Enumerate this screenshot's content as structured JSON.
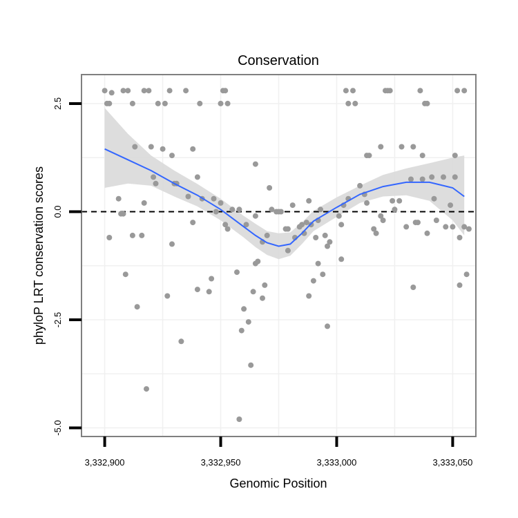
{
  "chart_data": {
    "type": "scatter",
    "title": "Conservation",
    "xlabel": "Genomic Position",
    "ylabel": "phyloP LRT conservation scores",
    "xlim": [
      3332890,
      3333060
    ],
    "ylim": [
      -5.2,
      3.17
    ],
    "x_ticks": [
      3332900,
      3332950,
      3333000,
      3333050
    ],
    "x_tick_labels": [
      "3,332,900",
      "3,332,950",
      "3,333,000",
      "3,333,050"
    ],
    "y_ticks": [
      2.5,
      0.0,
      -2.5,
      -5.0
    ],
    "y_tick_labels": [
      "2.5",
      "0.0",
      "-2.5",
      "-5.0"
    ],
    "reference_line": {
      "y": 0,
      "style": "dashed"
    },
    "grid": true,
    "colors": {
      "points": "#999999",
      "smooth": "#3366ff",
      "ribbon": "#d9d9d9",
      "border": "#7f7f7f",
      "grid": "#f0f0f0"
    },
    "points": [
      [
        3332900,
        2.8
      ],
      [
        3332901,
        2.5
      ],
      [
        3332902,
        2.5
      ],
      [
        3332903,
        2.75
      ],
      [
        3332908,
        2.8
      ],
      [
        3332910,
        2.8
      ],
      [
        3332912,
        2.5
      ],
      [
        3332917,
        2.8
      ],
      [
        3332919,
        2.8
      ],
      [
        3332923,
        2.5
      ],
      [
        3332926,
        2.5
      ],
      [
        3332928,
        2.8
      ],
      [
        3332935,
        2.8
      ],
      [
        3332941,
        2.5
      ],
      [
        3332950,
        2.5
      ],
      [
        3332951,
        2.8
      ],
      [
        3332952,
        2.8
      ],
      [
        3332953,
        2.5
      ],
      [
        3333004,
        2.8
      ],
      [
        3333005,
        2.5
      ],
      [
        3333007,
        2.8
      ],
      [
        3333008,
        2.5
      ],
      [
        3333021,
        2.8
      ],
      [
        3333022,
        2.8
      ],
      [
        3333023,
        2.8
      ],
      [
        3333036,
        2.8
      ],
      [
        3333038,
        2.5
      ],
      [
        3333039,
        2.5
      ],
      [
        3333052,
        2.8
      ],
      [
        3333055,
        2.8
      ],
      [
        3332913,
        1.5
      ],
      [
        3332920,
        1.5
      ],
      [
        3332925,
        1.45
      ],
      [
        3332929,
        1.3
      ],
      [
        3332938,
        1.45
      ],
      [
        3333019,
        1.5
      ],
      [
        3333013,
        1.3
      ],
      [
        3333014,
        1.3
      ],
      [
        3333028,
        1.5
      ],
      [
        3333033,
        1.5
      ],
      [
        3333037,
        1.3
      ],
      [
        3333051,
        1.3
      ],
      [
        3332965,
        1.1
      ],
      [
        3332921,
        0.8
      ],
      [
        3332922,
        0.65
      ],
      [
        3332930,
        0.65
      ],
      [
        3332931,
        0.65
      ],
      [
        3332940,
        0.8
      ],
      [
        3332906,
        0.3
      ],
      [
        3332917,
        0.2
      ],
      [
        3332936,
        0.35
      ],
      [
        3332938,
        -0.25
      ],
      [
        3332942,
        0.3
      ],
      [
        3332947,
        0.3
      ],
      [
        3332948,
        0.0
      ],
      [
        3332950,
        0.2
      ],
      [
        3332952,
        -0.3
      ],
      [
        3332953,
        -0.4
      ],
      [
        3332955,
        0.05
      ],
      [
        3332958,
        0.05
      ],
      [
        3332961,
        -0.3
      ],
      [
        3332965,
        -0.1
      ],
      [
        3332968,
        -0.7
      ],
      [
        3332970,
        -0.55
      ],
      [
        3332971,
        0.55
      ],
      [
        3332972,
        0.05
      ],
      [
        3332974,
        0.0
      ],
      [
        3332975,
        0.0
      ],
      [
        3332976,
        0.0
      ],
      [
        3332978,
        -0.4
      ],
      [
        3332979,
        -0.4
      ],
      [
        3332981,
        0.15
      ],
      [
        3332982,
        -0.6
      ],
      [
        3332984,
        -0.35
      ],
      [
        3332985,
        -0.3
      ],
      [
        3332986,
        -0.5
      ],
      [
        3332987,
        -0.25
      ],
      [
        3332988,
        0.25
      ],
      [
        3332989,
        -0.3
      ],
      [
        3332991,
        -0.6
      ],
      [
        3332992,
        -0.2
      ],
      [
        3332993,
        0.05
      ],
      [
        3332995,
        -0.55
      ],
      [
        3332996,
        -0.8
      ],
      [
        3332997,
        -0.7
      ],
      [
        3333001,
        -0.1
      ],
      [
        3333002,
        -0.3
      ],
      [
        3333003,
        0.15
      ],
      [
        3333005,
        0.3
      ],
      [
        3333010,
        0.6
      ],
      [
        3333012,
        0.4
      ],
      [
        3333013,
        0.2
      ],
      [
        3333016,
        -0.4
      ],
      [
        3333017,
        -0.5
      ],
      [
        3333019,
        -0.1
      ],
      [
        3333020,
        -0.2
      ],
      [
        3333024,
        0.25
      ],
      [
        3333025,
        0.05
      ],
      [
        3333027,
        0.25
      ],
      [
        3333030,
        -0.35
      ],
      [
        3333032,
        0.75
      ],
      [
        3333034,
        -0.25
      ],
      [
        3333035,
        -0.25
      ],
      [
        3333037,
        0.75
      ],
      [
        3333039,
        -0.5
      ],
      [
        3333041,
        0.8
      ],
      [
        3333042,
        0.3
      ],
      [
        3333043,
        -0.2
      ],
      [
        3333046,
        0.8
      ],
      [
        3333047,
        -0.35
      ],
      [
        3333049,
        0.15
      ],
      [
        3333050,
        -0.35
      ],
      [
        3333051,
        0.8
      ],
      [
        3333053,
        -0.6
      ],
      [
        3333055,
        -0.35
      ],
      [
        3333057,
        -0.4
      ],
      [
        3332902,
        -0.6
      ],
      [
        3332907,
        -0.05
      ],
      [
        3332908,
        -0.05
      ],
      [
        3332912,
        -0.55
      ],
      [
        3332916,
        -0.55
      ],
      [
        3332909,
        -1.45
      ],
      [
        3332914,
        -2.2
      ],
      [
        3332918,
        -4.1
      ],
      [
        3332929,
        -0.75
      ],
      [
        3332927,
        -1.95
      ],
      [
        3332933,
        -3.0
      ],
      [
        3332940,
        -1.8
      ],
      [
        3332945,
        -1.85
      ],
      [
        3332946,
        -1.55
      ],
      [
        3332957,
        -1.4
      ],
      [
        3332958,
        -4.8
      ],
      [
        3332959,
        -2.75
      ],
      [
        3332960,
        -2.25
      ],
      [
        3332962,
        -2.55
      ],
      [
        3332963,
        -3.55
      ],
      [
        3332964,
        -1.85
      ],
      [
        3332965,
        -1.2
      ],
      [
        3332966,
        -1.15
      ],
      [
        3332968,
        -2.0
      ],
      [
        3332969,
        -1.7
      ],
      [
        3332979,
        -0.9
      ],
      [
        3332988,
        -1.95
      ],
      [
        3332990,
        -1.6
      ],
      [
        3332992,
        -1.2
      ],
      [
        3332994,
        -1.45
      ],
      [
        3332996,
        -2.65
      ],
      [
        3333002,
        -1.1
      ],
      [
        3333033,
        -1.75
      ],
      [
        3333053,
        -1.7
      ],
      [
        3333056,
        -1.45
      ]
    ],
    "smooth_fit": {
      "x": [
        3332900,
        3332910,
        3332920,
        3332930,
        3332940,
        3332950,
        3332960,
        3332965,
        3332970,
        3332975,
        3332980,
        3332985,
        3332990,
        3333000,
        3333010,
        3333020,
        3333030,
        3333040,
        3333050,
        3333055
      ],
      "y": [
        1.45,
        1.2,
        0.95,
        0.65,
        0.38,
        0.05,
        -0.35,
        -0.55,
        -0.72,
        -0.8,
        -0.75,
        -0.5,
        -0.22,
        0.1,
        0.4,
        0.58,
        0.68,
        0.68,
        0.55,
        0.35
      ],
      "lower": [
        0.55,
        0.65,
        0.6,
        0.35,
        0.12,
        -0.2,
        -0.6,
        -0.82,
        -1.0,
        -1.1,
        -1.02,
        -0.75,
        -0.45,
        -0.12,
        0.2,
        0.35,
        0.38,
        0.25,
        -0.2,
        -0.55
      ],
      "upper": [
        2.4,
        1.8,
        1.3,
        0.95,
        0.64,
        0.3,
        -0.1,
        -0.28,
        -0.45,
        -0.5,
        -0.48,
        -0.25,
        0.02,
        0.33,
        0.6,
        0.85,
        1.0,
        1.12,
        1.25,
        1.3
      ]
    }
  }
}
